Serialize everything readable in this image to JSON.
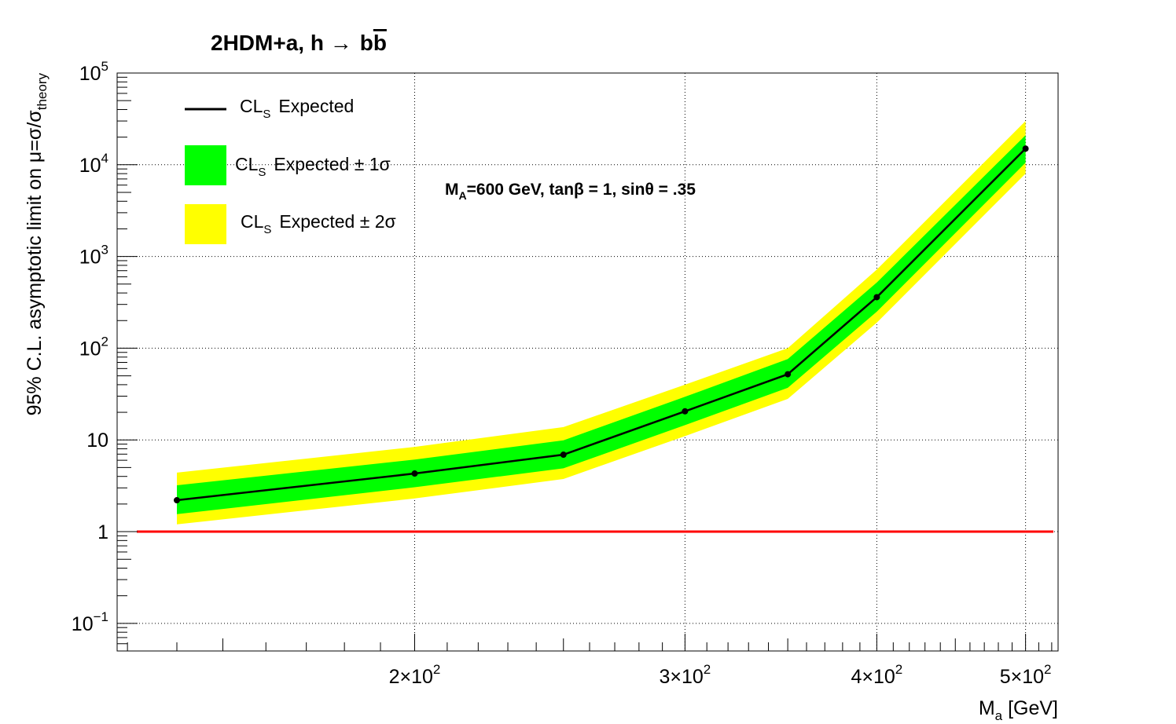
{
  "chart_data": {
    "type": "line",
    "title": "2HDM+a,   h → bb̄",
    "title_parts": {
      "main": "2HDM+a,   h ",
      "arrow": "→",
      "b1": "b",
      "b2": "b"
    },
    "annotation": {
      "main": "M",
      "sub": "A",
      "rest": "=600 GeV, tanβ = 1, sinθ = .35"
    },
    "xlabel": {
      "main": "M",
      "sub": "a",
      "rest": " [GeV]"
    },
    "ylabel": {
      "main": "95% C.L. asymptotic limit on μ=σ/σ",
      "sub": "theory"
    },
    "xscale": "log",
    "yscale": "log",
    "xlim": [
      128,
      525
    ],
    "ylim": [
      0.05,
      100000
    ],
    "grid": true,
    "legend_position": "top-left",
    "x_ticks": [
      {
        "value": 200,
        "label": "2×10",
        "exp": "2"
      },
      {
        "value": 300,
        "label": "3×10",
        "exp": "2"
      },
      {
        "value": 400,
        "label": "4×10",
        "exp": "2"
      },
      {
        "value": 500,
        "label": "5×10",
        "exp": "2"
      }
    ],
    "y_ticks": [
      {
        "value": 0.1,
        "label": "10",
        "exp": "−1"
      },
      {
        "value": 1,
        "label": "1",
        "exp": ""
      },
      {
        "value": 10,
        "label": "10",
        "exp": ""
      },
      {
        "value": 100,
        "label": "10",
        "exp": "2"
      },
      {
        "value": 1000,
        "label": "10",
        "exp": "3"
      },
      {
        "value": 10000,
        "label": "10",
        "exp": "4"
      },
      {
        "value": 100000,
        "label": "10",
        "exp": "5"
      }
    ],
    "x": [
      140,
      200,
      250,
      300,
      350,
      400,
      500
    ],
    "series": [
      {
        "name": "Expected",
        "values": [
          2.2,
          4.3,
          6.9,
          20.5,
          52,
          360,
          15000
        ],
        "color": "#000000"
      },
      {
        "name": "Expected ± 1σ",
        "low": [
          1.55,
          3.05,
          4.9,
          14.5,
          37,
          250,
          10500
        ],
        "high": [
          3.2,
          6.1,
          9.9,
          29.5,
          76,
          520,
          21000
        ],
        "color": "#00ff00"
      },
      {
        "name": "Expected ± 2σ",
        "low": [
          1.2,
          2.3,
          3.75,
          11,
          28,
          190,
          8000
        ],
        "high": [
          4.4,
          8.4,
          13.8,
          40,
          100,
          720,
          30000
        ],
        "color": "#ffff00"
      }
    ],
    "reference_line": {
      "y": 1,
      "color": "#ff0000"
    },
    "legend": [
      {
        "cl": "CL",
        "sub": "S",
        "text": "Expected"
      },
      {
        "cl": "CL",
        "sub": "S",
        "text": "Expected ± 1σ"
      },
      {
        "cl": "CL",
        "sub": "S",
        "text": "Expected ± 2σ"
      }
    ]
  }
}
